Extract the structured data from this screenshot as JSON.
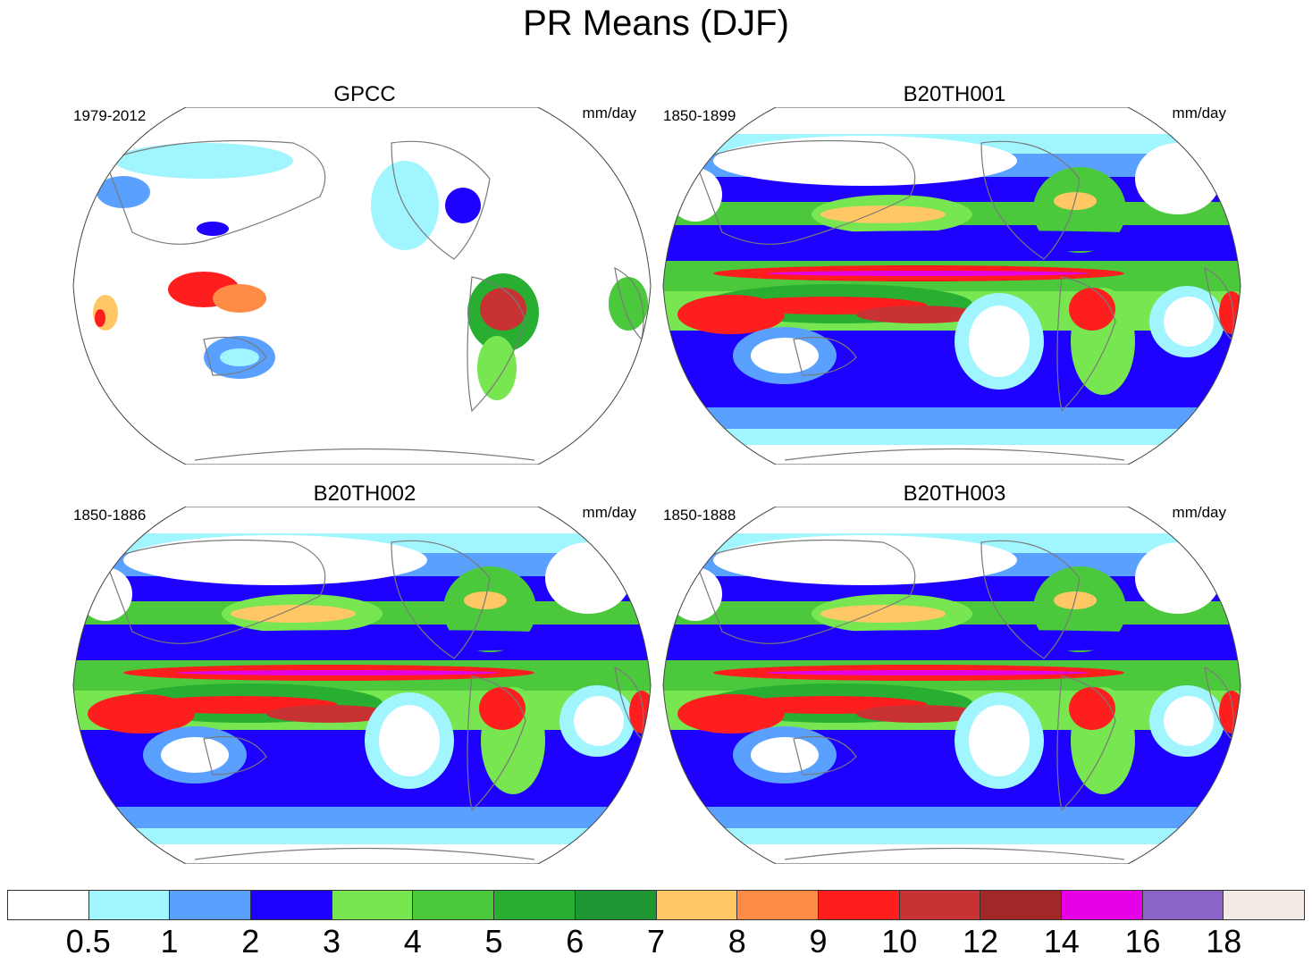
{
  "title": "PR Means (DJF)",
  "panels": [
    {
      "name": "GPCC",
      "period": "1979-2012",
      "units": "mm/day",
      "kind": "obs"
    },
    {
      "name": "B20TH001",
      "period": "1850-1899",
      "units": "mm/day",
      "kind": "model"
    },
    {
      "name": "B20TH002",
      "period": "1850-1886",
      "units": "mm/day",
      "kind": "model"
    },
    {
      "name": "B20TH003",
      "period": "1850-1888",
      "units": "mm/day",
      "kind": "model"
    }
  ],
  "colorbar": {
    "colors": [
      "#ffffff",
      "#a0f5ff",
      "#5aa0ff",
      "#1e00ff",
      "#78e650",
      "#4bc83c",
      "#28af32",
      "#1e9632",
      "#ffc864",
      "#ff8c46",
      "#ff1e1e",
      "#c83232",
      "#a02828",
      "#e600e6",
      "#8c64c8",
      "#f5ebe6"
    ],
    "labels": [
      "0.5",
      "1",
      "2",
      "3",
      "4",
      "5",
      "6",
      "7",
      "8",
      "9",
      "10",
      "12",
      "14",
      "16",
      "18"
    ]
  }
}
